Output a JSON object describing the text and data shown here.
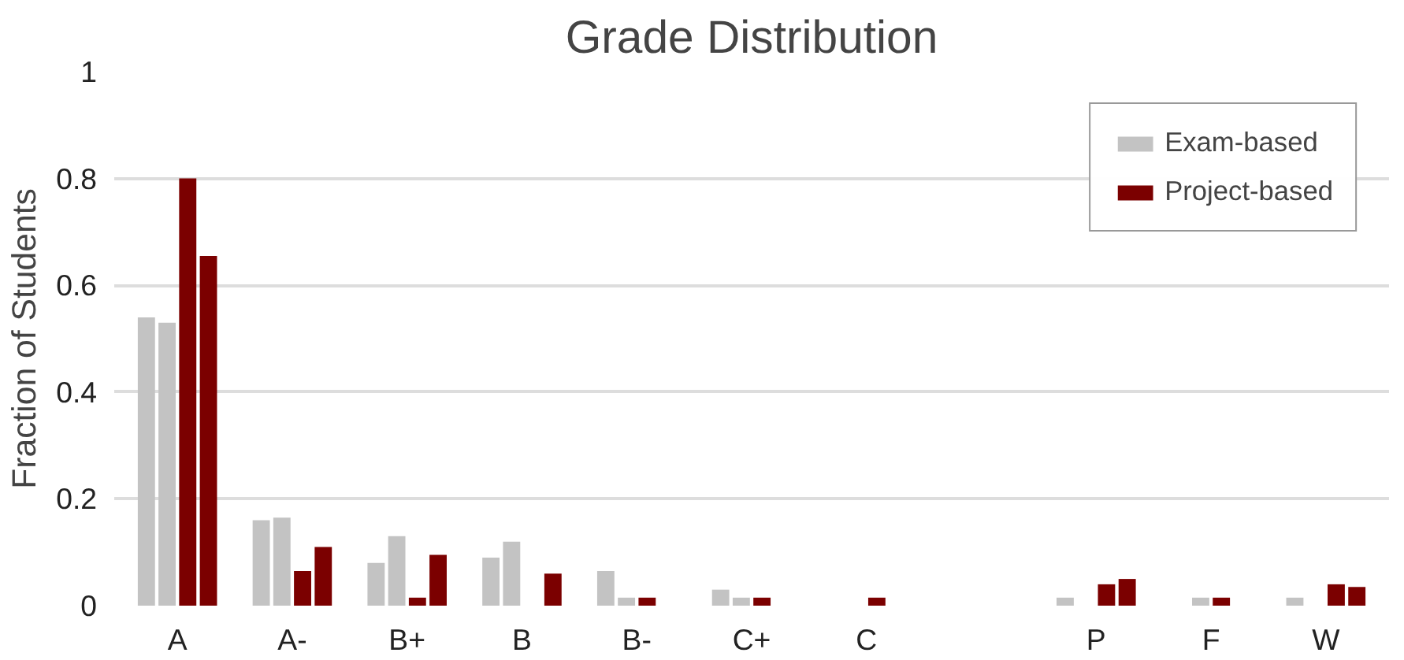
{
  "chart_data": {
    "type": "bar",
    "title": "Grade Distribution",
    "ylabel": "Fraction of Students",
    "categories": [
      "A",
      "A-",
      "B+",
      "B",
      "B-",
      "C+",
      "C",
      null,
      "P",
      "F",
      "W"
    ],
    "series": [
      {
        "name": "Exam-based",
        "color": "#c3c3c3",
        "values": [
          0.54,
          0.16,
          0.08,
          0.09,
          0.065,
          0.03,
          0,
          0,
          0.015,
          0,
          0.015
        ]
      },
      {
        "color": "#c3c3c3",
        "values": [
          0.53,
          0.165,
          0.13,
          0.12,
          0.015,
          0.015,
          0,
          0,
          0,
          0.015,
          0
        ]
      },
      {
        "name": "Project-based",
        "color": "#7b0000",
        "values": [
          0.8,
          0.065,
          0.015,
          0,
          0.015,
          0.015,
          0.015,
          0,
          0.04,
          0.015,
          0.04
        ]
      },
      {
        "color": "#7b0000",
        "values": [
          0.655,
          0.11,
          0.095,
          0.06,
          0,
          0,
          0,
          0,
          0.05,
          0,
          0.035
        ]
      }
    ],
    "ylim": [
      0,
      1
    ],
    "yticks": [
      0,
      0.2,
      0.4,
      0.6,
      0.8,
      1
    ],
    "grid": "y",
    "legend": "top right"
  }
}
